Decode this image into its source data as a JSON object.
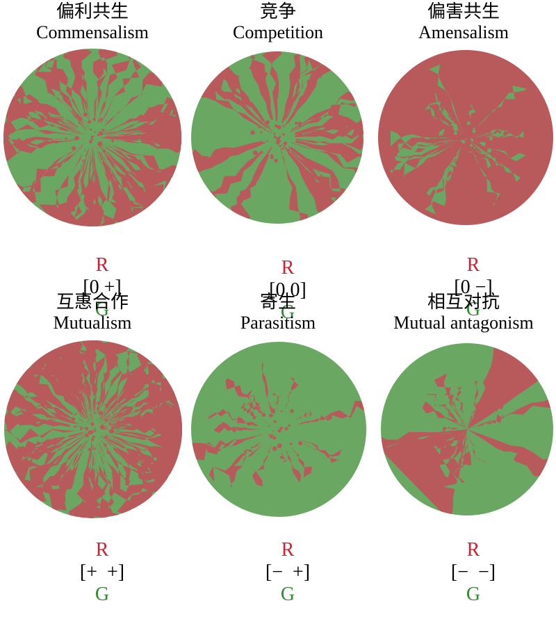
{
  "colors": {
    "red_strain": "#b85a5c",
    "green_strain": "#6aa763",
    "label_red": "#cc2233",
    "label_green": "#2e8b2e"
  },
  "panels": [
    {
      "title_zh": "偏利共生",
      "title_en": "Commensalism",
      "label_r": "R",
      "matrix": "[0 +]",
      "label_g": "G",
      "background": "green",
      "red_fraction": 0.35,
      "pattern": "fine-sectors"
    },
    {
      "title_zh": "竞争",
      "title_en": "Competition",
      "label_r": "R",
      "matrix": "[0 0]",
      "label_g": "G",
      "background": "green",
      "red_fraction": 0.5,
      "pattern": "sectors"
    },
    {
      "title_zh": "偏害共生",
      "title_en": "Amensalism",
      "label_r": "R",
      "matrix": "[0 −]",
      "label_g": "G",
      "background": "red",
      "red_fraction": 0.92,
      "pattern": "red-dominant"
    },
    {
      "title_zh": "互惠合作",
      "title_en": "Mutualism",
      "label_r": "R",
      "matrix": "[+  +]",
      "label_g": "G",
      "background": "green",
      "red_fraction": 0.5,
      "pattern": "fine-mixed"
    },
    {
      "title_zh": "寄生",
      "title_en": "Parasitism",
      "label_r": "R",
      "matrix": "[−  +]",
      "label_g": "G",
      "background": "green",
      "red_fraction": 0.06,
      "pattern": "green-dominant"
    },
    {
      "title_zh": "相互对抗",
      "title_en": "Mutual antagonism",
      "label_r": "R",
      "matrix": "[−  −]",
      "label_g": "G",
      "background": "green",
      "red_fraction": 0.45,
      "pattern": "large-sectors"
    }
  ]
}
